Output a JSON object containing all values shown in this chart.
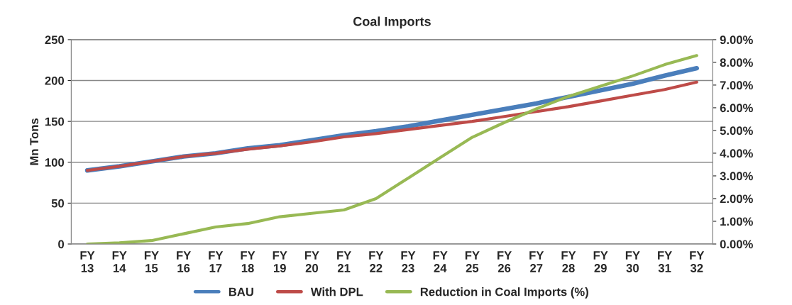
{
  "chart_data": {
    "type": "line",
    "title": "Coal Imports",
    "ylabel": "Mn Tons",
    "categories": [
      "FY\n13",
      "FY\n14",
      "FY\n15",
      "FY\n16",
      "FY\n17",
      "FY\n18",
      "FY\n19",
      "FY\n20",
      "FY\n21",
      "FY\n22",
      "FY\n23",
      "FY\n24",
      "FY\n25",
      "FY\n26",
      "FY\n27",
      "FY\n28",
      "FY\n29",
      "FY\n30",
      "FY\n31",
      "FY\n32"
    ],
    "series": [
      {
        "name": "BAU",
        "color": "#4a7ebb",
        "values": [
          90,
          95,
          101,
          107,
          111,
          117,
          121,
          127,
          133,
          138,
          144,
          151,
          158,
          165,
          172,
          180,
          188,
          196,
          206,
          215
        ]
      },
      {
        "name": "With DPL",
        "color": "#be4b48",
        "values": [
          90,
          95,
          101,
          107,
          111,
          116,
          120,
          125,
          131,
          135,
          140,
          145,
          150,
          156,
          162,
          168,
          175,
          182,
          189,
          198
        ]
      },
      {
        "name": "Reduction in Coal Imports (%)",
        "color": "#98b954",
        "axis": "y2",
        "values": [
          0,
          0.05,
          0.15,
          0.45,
          0.75,
          0.9,
          1.2,
          1.35,
          1.5,
          2.0,
          2.9,
          3.8,
          4.7,
          5.35,
          5.95,
          6.5,
          6.95,
          7.4,
          7.9,
          8.3
        ]
      }
    ],
    "ylim": [
      0,
      250
    ],
    "yticks": [
      0,
      50,
      100,
      150,
      200,
      250
    ],
    "y2lim": [
      0,
      9
    ],
    "y2ticks": [
      {
        "value": 0,
        "label": "0.00%"
      },
      {
        "value": 1,
        "label": "1.00%"
      },
      {
        "value": 2,
        "label": "2.00%"
      },
      {
        "value": 3,
        "label": "3.00%"
      },
      {
        "value": 4,
        "label": "4.00%"
      },
      {
        "value": 5,
        "label": "5.00%"
      },
      {
        "value": 6,
        "label": "6.00%"
      },
      {
        "value": 7,
        "label": "7.00%"
      },
      {
        "value": 8,
        "label": "8.00%"
      },
      {
        "value": 9,
        "label": "9.00%"
      }
    ],
    "grid": "y",
    "legend": "bottom",
    "marker": "none",
    "line_style": "solid"
  }
}
